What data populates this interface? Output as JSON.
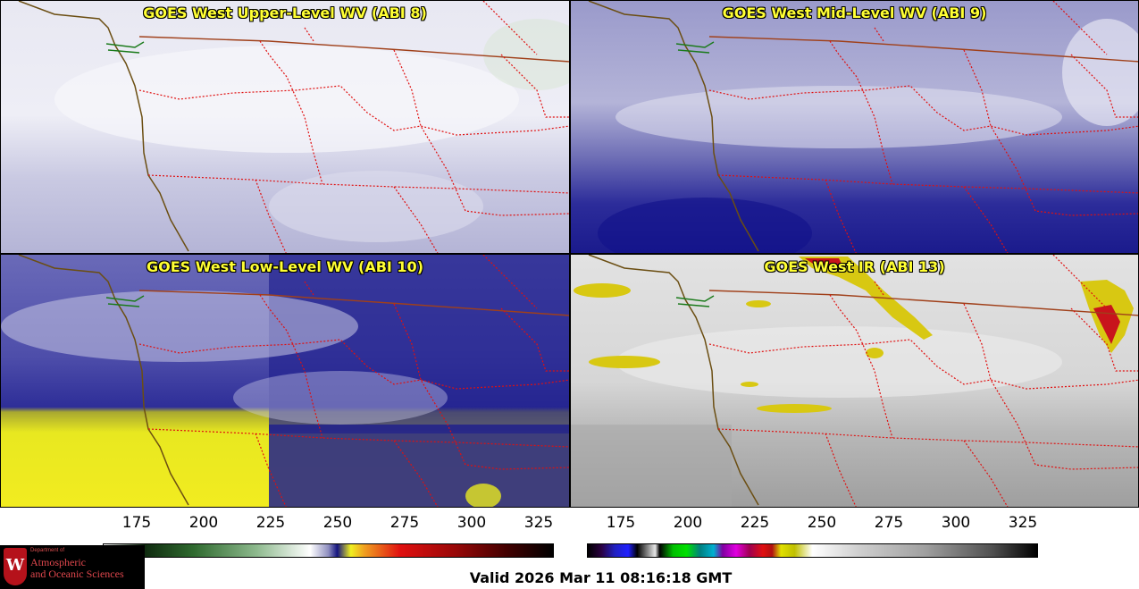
{
  "panels": [
    {
      "title": "GOES West Upper-Level WV (ABI 8)",
      "product": "upper-wv"
    },
    {
      "title": "GOES West Mid-Level WV (ABI 9)",
      "product": "mid-wv"
    },
    {
      "title": "GOES West Low-Level WV (ABI 10)",
      "product": "low-wv"
    },
    {
      "title": "GOES West IR (ABI 13)",
      "product": "ir"
    }
  ],
  "colorbars": [
    {
      "name": "wv-colorbar",
      "ticks": [
        "175",
        "200",
        "225",
        "250",
        "275",
        "300",
        "325"
      ]
    },
    {
      "name": "ir-colorbar",
      "ticks": [
        "175",
        "200",
        "225",
        "250",
        "275",
        "300",
        "325"
      ]
    }
  ],
  "valid_time": "Valid 2026 Mar 11 08:16:18 GMT",
  "logo": {
    "crest_letter": "W",
    "dept_line": "Department of",
    "name_line1": "Atmospheric",
    "name_line2": "and Oceanic Sciences"
  },
  "colors": {
    "title_text": "#ffff33",
    "state_borders": "#e01010",
    "coastline": "#6b4e12",
    "intl_border": "#a0401a"
  }
}
